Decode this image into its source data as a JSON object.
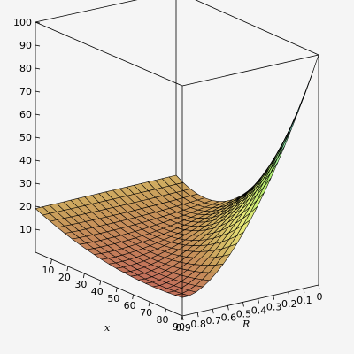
{
  "chart_data": {
    "type": "surface3d",
    "xlabel": "x",
    "ylabel": "R",
    "zlabel": "",
    "x_range": [
      0,
      90
    ],
    "R_range": [
      0,
      0.9
    ],
    "z_range": [
      0,
      100
    ],
    "x_ticks": [
      "10",
      "20",
      "30",
      "40",
      "50",
      "60",
      "70",
      "80",
      "90"
    ],
    "R_ticks": [
      "0.9",
      "0.8",
      "0.7",
      "0.6",
      "0.5",
      "0.4",
      "0.3",
      "0.2",
      "0.1",
      "0"
    ],
    "z_ticks": [
      "10",
      "20",
      "30",
      "40",
      "50",
      "60",
      "70",
      "80",
      "90",
      "100"
    ],
    "grid_x": [
      0,
      4.5,
      9,
      13.5,
      18,
      22.5,
      27,
      31.5,
      36,
      40.5,
      45,
      49.5,
      54,
      58.5,
      63,
      67.5,
      72,
      76.5,
      81,
      85.5,
      90
    ],
    "grid_R": [
      0,
      0.045,
      0.09,
      0.135,
      0.18,
      0.225,
      0.27,
      0.315,
      0.36,
      0.405,
      0.45,
      0.495,
      0.54,
      0.585,
      0.63,
      0.675,
      0.72,
      0.765,
      0.81,
      0.855,
      0.9
    ],
    "corner_values": [
      {
        "x": 0,
        "R": 0,
        "z": 20
      },
      {
        "x": 0,
        "R": 0.9,
        "z": 20
      },
      {
        "x": 90,
        "R": 0.9,
        "z": 8
      },
      {
        "x": 90,
        "R": 0,
        "z": 100
      }
    ],
    "colormap": [
      "#8b2a35",
      "#c0625a",
      "#c89a5a",
      "#e8e878",
      "#b0f070",
      "#7cf0e0",
      "#5ef2ff"
    ]
  }
}
